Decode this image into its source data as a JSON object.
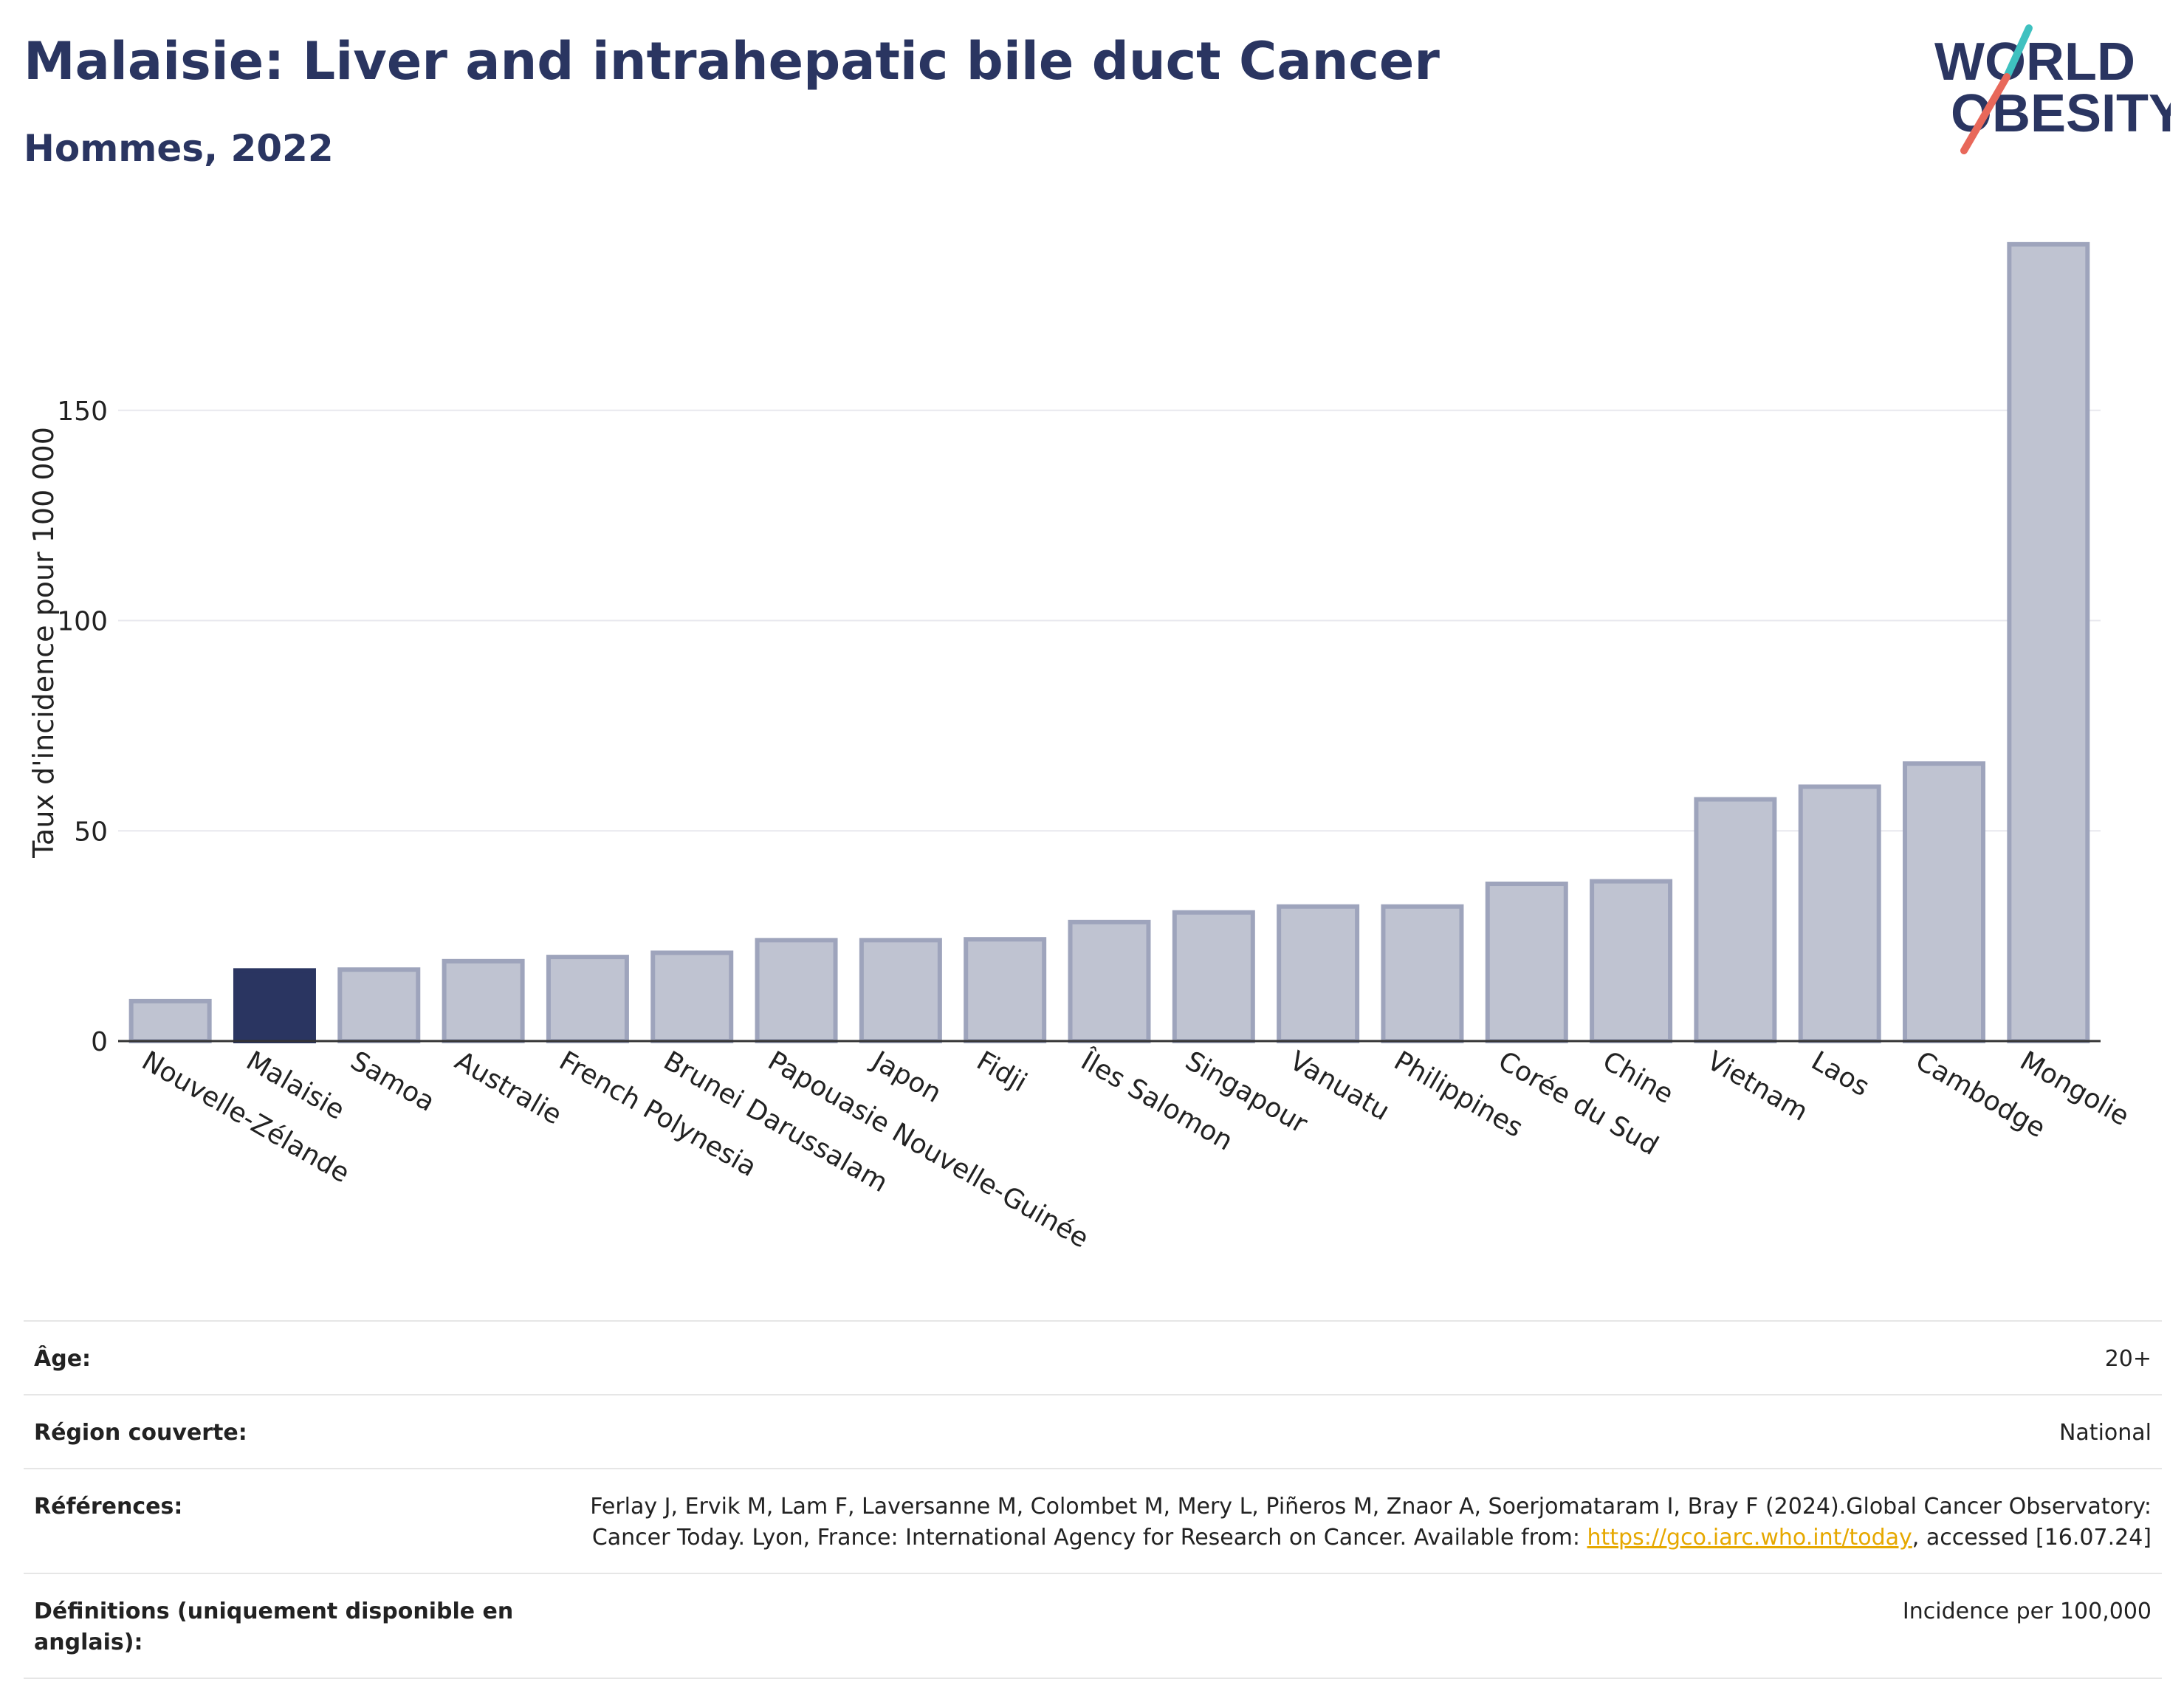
{
  "header": {
    "title": "Malaisie: Liver and intrahepatic bile duct Cancer",
    "subtitle": "Hommes, 2022"
  },
  "logo": {
    "line1": "WORLD",
    "line2": "OBESITY",
    "colors": {
      "text": "#2a3561",
      "slash_teal": "#3fc1c0",
      "slash_red": "#e8685a"
    }
  },
  "chart_data": {
    "type": "bar",
    "ylabel": "Taux d'incidence pour 100 000",
    "xlabel": "",
    "ylim": [
      0,
      190
    ],
    "yticks": [
      0,
      50,
      100,
      150
    ],
    "grid": true,
    "categories": [
      "Nouvelle-Zélande",
      "Malaisie",
      "Samoa",
      "Australie",
      "French Polynesia",
      "Brunei Darussalam",
      "Papouasie Nouvelle-Guinée",
      "Japon",
      "Fidji",
      "Îles Salomon",
      "Singapour",
      "Vanuatu",
      "Philippines",
      "Corée du Sud",
      "Chine",
      "Vietnam",
      "Laos",
      "Cambodge",
      "Mongolie"
    ],
    "values": [
      9.5,
      16.8,
      17.0,
      19.0,
      20.0,
      21.0,
      24.0,
      24.0,
      24.2,
      28.3,
      30.6,
      32.0,
      32.0,
      37.4,
      38.0,
      57.5,
      60.5,
      66.0,
      189.5
    ],
    "highlight": "Malaisie",
    "colors": {
      "bar": "#bfc3d1",
      "bar_edge": "#9ea4bc",
      "highlight": "#2a3561"
    }
  },
  "info": {
    "rows": [
      {
        "label": "Âge:",
        "value": "20+"
      },
      {
        "label": "Région couverte:",
        "value": "National"
      },
      {
        "label": "Références:",
        "value_pre": "Ferlay J, Ervik M, Lam F, Laversanne M, Colombet M, Mery L, Piñeros M, Znaor A, Soerjomataram I, Bray F (2024).Global Cancer Observatory: Cancer Today. Lyon, France: International Agency for Research on Cancer. Available from: ",
        "link": "https://gco.iarc.who.int/today",
        "value_post": ", accessed [16.07.24]"
      },
      {
        "label": "Définitions (uniquement disponible en anglais):",
        "value": "Incidence per 100,000"
      }
    ]
  }
}
